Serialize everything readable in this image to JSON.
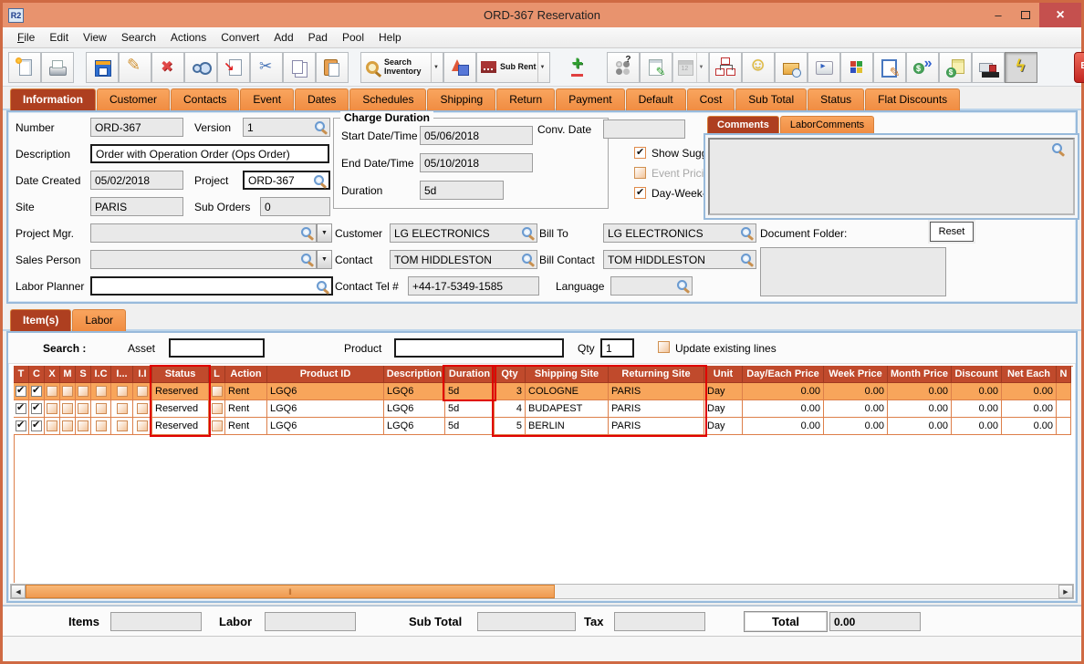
{
  "window": {
    "title": "ORD-367 Reservation",
    "app_badge": "R2"
  },
  "menu": {
    "items": [
      "File",
      "Edit",
      "View",
      "Search",
      "Actions",
      "Convert",
      "Add",
      "Pad",
      "Pool",
      "Help"
    ]
  },
  "toolbar": {
    "buttons": [
      {
        "name": "new-document"
      },
      {
        "name": "print"
      },
      {
        "name": "save",
        "gap": true
      },
      {
        "name": "edit"
      },
      {
        "name": "delete"
      },
      {
        "name": "find"
      },
      {
        "name": "transfer-document"
      },
      {
        "name": "cut"
      },
      {
        "name": "copy"
      },
      {
        "name": "paste"
      },
      {
        "name": "search-inventory",
        "label": "Search Inventory",
        "dropdown": true,
        "gap": true
      },
      {
        "name": "3d-objects"
      },
      {
        "name": "sub-rent",
        "label": "Sub Rent",
        "dropdown": true
      },
      {
        "name": "add-line",
        "frameless": true,
        "gap": true
      },
      {
        "name": "check-question",
        "gap": true
      },
      {
        "name": "notes"
      },
      {
        "name": "calendar",
        "disabled": true,
        "dropdown": true
      },
      {
        "name": "hierarchy"
      },
      {
        "name": "smiley"
      },
      {
        "name": "folder-clock"
      },
      {
        "name": "keyboard"
      },
      {
        "name": "cubes"
      },
      {
        "name": "edit-document"
      },
      {
        "name": "dollar-transfer"
      },
      {
        "name": "dollar-note"
      },
      {
        "name": "truck"
      },
      {
        "name": "lightning",
        "pressed": true,
        "push_right": true
      },
      {
        "name": "exit",
        "label": "EXIT",
        "exit": true
      }
    ]
  },
  "tabs": {
    "active": "Information",
    "items": [
      "Information",
      "Customer",
      "Contacts",
      "Event",
      "Dates",
      "Schedules",
      "Shipping",
      "Return",
      "Payment",
      "Default",
      "Cost",
      "Sub Total",
      "Status",
      "Flat Discounts"
    ]
  },
  "form": {
    "number": {
      "label": "Number",
      "value": "ORD-367"
    },
    "version": {
      "label": "Version",
      "value": "1"
    },
    "description": {
      "label": "Description",
      "value": "Order with Operation Order (Ops Order)"
    },
    "date_created": {
      "label": "Date Created",
      "value": "05/02/2018"
    },
    "project": {
      "label": "Project",
      "value": "ORD-367"
    },
    "site": {
      "label": "Site",
      "value": "PARIS"
    },
    "sub_orders": {
      "label": "Sub Orders",
      "value": "0"
    },
    "project_mgr": {
      "label": "Project Mgr.",
      "value": ""
    },
    "sales_person": {
      "label": "Sales Person",
      "value": ""
    },
    "labor_planner": {
      "label": "Labor Planner",
      "value": ""
    },
    "charge_duration": {
      "title": "Charge Duration",
      "start": {
        "label": "Start Date/Time",
        "value": "05/06/2018"
      },
      "end": {
        "label": "End Date/Time",
        "value": "05/10/2018"
      },
      "duration": {
        "label": "Duration",
        "value": "5d"
      }
    },
    "conv_date": {
      "label": "Conv. Date",
      "value": ""
    },
    "checks": {
      "show_suggestions": {
        "label": "Show Suggestions",
        "checked": true
      },
      "event_pricing": {
        "label": "Event Pricing",
        "checked": false,
        "disabled": true
      },
      "day_week_month": {
        "label": "Day-Week-Month Pricing",
        "checked": true
      }
    },
    "customer": {
      "label": "Customer",
      "value": "LG ELECTRONICS"
    },
    "contact": {
      "label": "Contact",
      "value": "TOM HIDDLESTON"
    },
    "contact_tel": {
      "label": "Contact Tel #",
      "value": "+44-17-5349-1585"
    },
    "bill_to": {
      "label": "Bill To",
      "value": "LG ELECTRONICS"
    },
    "bill_contact": {
      "label": "Bill Contact",
      "value": "TOM HIDDLESTON"
    },
    "language": {
      "label": "Language",
      "value": ""
    },
    "comments": {
      "tabs": [
        "Comments",
        "LaborComments"
      ],
      "active": "Comments",
      "value": ""
    },
    "document_folder": {
      "label": "Document Folder:",
      "reset_label": "Reset",
      "value": ""
    }
  },
  "items_section": {
    "tabs": [
      "Item(s)",
      "Labor"
    ],
    "active": "Item(s)",
    "search": {
      "label": "Search :",
      "asset_label": "Asset",
      "asset_value": "",
      "product_label": "Product",
      "product_value": "",
      "qty_label": "Qty",
      "qty_value": "1",
      "update_label": "Update existing lines",
      "update_checked": false
    },
    "table": {
      "checkbox_headers": [
        "T",
        "C",
        "X",
        "M",
        "S",
        "I.C",
        "I...",
        "I.I"
      ],
      "headers": [
        "Status",
        "L",
        "Action",
        "Product ID",
        "Description",
        "Duration",
        "Qty",
        "Shipping Site",
        "Returning Site",
        "Unit",
        "Day/Each Price",
        "Week Price",
        "Month Price",
        "Discount",
        "Net Each",
        "N"
      ],
      "rows": [
        {
          "selected": true,
          "checks": [
            true,
            true,
            false,
            false,
            false,
            false,
            false,
            false
          ],
          "cells": {
            "status": "Reserved",
            "l": false,
            "action": "Rent",
            "product_id": "LGQ6",
            "description": "LGQ6",
            "duration": "5d",
            "qty": "3",
            "shipping_site": "COLOGNE",
            "returning_site": "PARIS",
            "unit": "Day",
            "day_each_price": "0.00",
            "week_price": "0.00",
            "month_price": "0.00",
            "discount": "0.00",
            "net_each": "0.00",
            "n": ""
          }
        },
        {
          "selected": false,
          "checks": [
            true,
            true,
            false,
            false,
            false,
            false,
            false,
            false
          ],
          "cells": {
            "status": "Reserved",
            "l": false,
            "action": "Rent",
            "product_id": "LGQ6",
            "description": "LGQ6",
            "duration": "5d",
            "qty": "4",
            "shipping_site": "BUDAPEST",
            "returning_site": "PARIS",
            "unit": "Day",
            "day_each_price": "0.00",
            "week_price": "0.00",
            "month_price": "0.00",
            "discount": "0.00",
            "net_each": "0.00",
            "n": ""
          }
        },
        {
          "selected": false,
          "checks": [
            true,
            true,
            false,
            false,
            false,
            false,
            false,
            false
          ],
          "cells": {
            "status": "Reserved",
            "l": false,
            "action": "Rent",
            "product_id": "LGQ6",
            "description": "LGQ6",
            "duration": "5d",
            "qty": "5",
            "shipping_site": "BERLIN",
            "returning_site": "PARIS",
            "unit": "Day",
            "day_each_price": "0.00",
            "week_price": "0.00",
            "month_price": "0.00",
            "discount": "0.00",
            "net_each": "0.00",
            "n": ""
          }
        }
      ]
    }
  },
  "footer": {
    "items_label": "Items",
    "items_value": "",
    "labor_label": "Labor",
    "labor_value": "",
    "sub_total_label": "Sub Total",
    "sub_total_value": "",
    "tax_label": "Tax",
    "tax_value": "",
    "total_label": "Total",
    "total_value": "0.00"
  },
  "colors": {
    "titlebar": "#e8936e",
    "window_border": "#cf6a43",
    "tab_orange": "#f1914a",
    "tab_active": "#ae3f20",
    "table_header": "#c04a2c",
    "selected_row": "#f8a55b",
    "highlight_box": "#e00000",
    "close_button": "#c5504e"
  }
}
